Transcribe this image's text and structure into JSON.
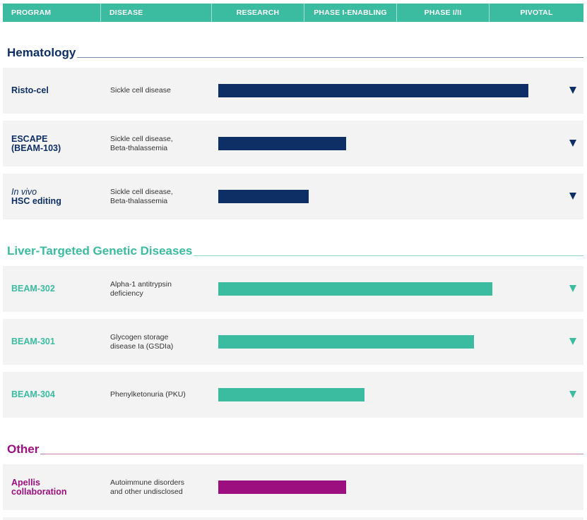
{
  "header": {
    "columns": [
      "PROGRAM",
      "DISEASE",
      "RESEARCH",
      "PHASE I-ENABLING",
      "PHASE I/II",
      "PIVOTAL"
    ]
  },
  "colors": {
    "header": "#3bbba0",
    "hematology": "#0e2f66",
    "liver": "#3bbba0",
    "other": "#9b0f7f"
  },
  "chart_data": {
    "type": "bar",
    "orientation": "horizontal",
    "stages": [
      "RESEARCH",
      "PHASE I-ENABLING",
      "PHASE I/II",
      "PIVOTAL"
    ],
    "progress_scale": [
      0,
      4
    ],
    "sections": [
      {
        "title": "Hematology",
        "color": "#0e2f66",
        "programs": [
          {
            "name_lines": [
              "Risto-cel"
            ],
            "disease_lines": [
              "Sickle cell disease"
            ],
            "progress": 3.35,
            "expand": true
          },
          {
            "name_lines": [
              "ESCAPE",
              "(BEAM-103)"
            ],
            "disease_lines": [
              "Sickle cell disease,",
              "Beta-thalassemia"
            ],
            "progress": 1.38,
            "expand": true
          },
          {
            "name_lines": [
              "In vivo",
              "HSC editing"
            ],
            "italic_first_line": true,
            "disease_lines": [
              "Sickle cell disease,",
              "Beta-thalassemia"
            ],
            "progress": 0.98,
            "expand": true
          }
        ]
      },
      {
        "title": "Liver-Targeted Genetic Diseases",
        "color": "#3bbba0",
        "programs": [
          {
            "name_lines": [
              "BEAM-302"
            ],
            "disease_lines": [
              "Alpha-1 antitrypsin",
              "deficiency"
            ],
            "progress": 2.96,
            "expand": true
          },
          {
            "name_lines": [
              "BEAM-301"
            ],
            "disease_lines": [
              "Glycogen storage",
              "disease Ia (GSDIa)"
            ],
            "progress": 2.76,
            "expand": true
          },
          {
            "name_lines": [
              "BEAM-304"
            ],
            "disease_lines": [
              "Phenylketonuria (PKU)"
            ],
            "progress": 1.58,
            "expand": true
          }
        ]
      },
      {
        "title": "Other",
        "color": "#9b0f7f",
        "programs": [
          {
            "name_lines": [
              "Apellis",
              "collaboration"
            ],
            "disease_lines": [
              "Autoimmune disorders",
              "and other undisclosed"
            ],
            "progress": 1.38,
            "expand": false
          }
        ]
      }
    ]
  }
}
